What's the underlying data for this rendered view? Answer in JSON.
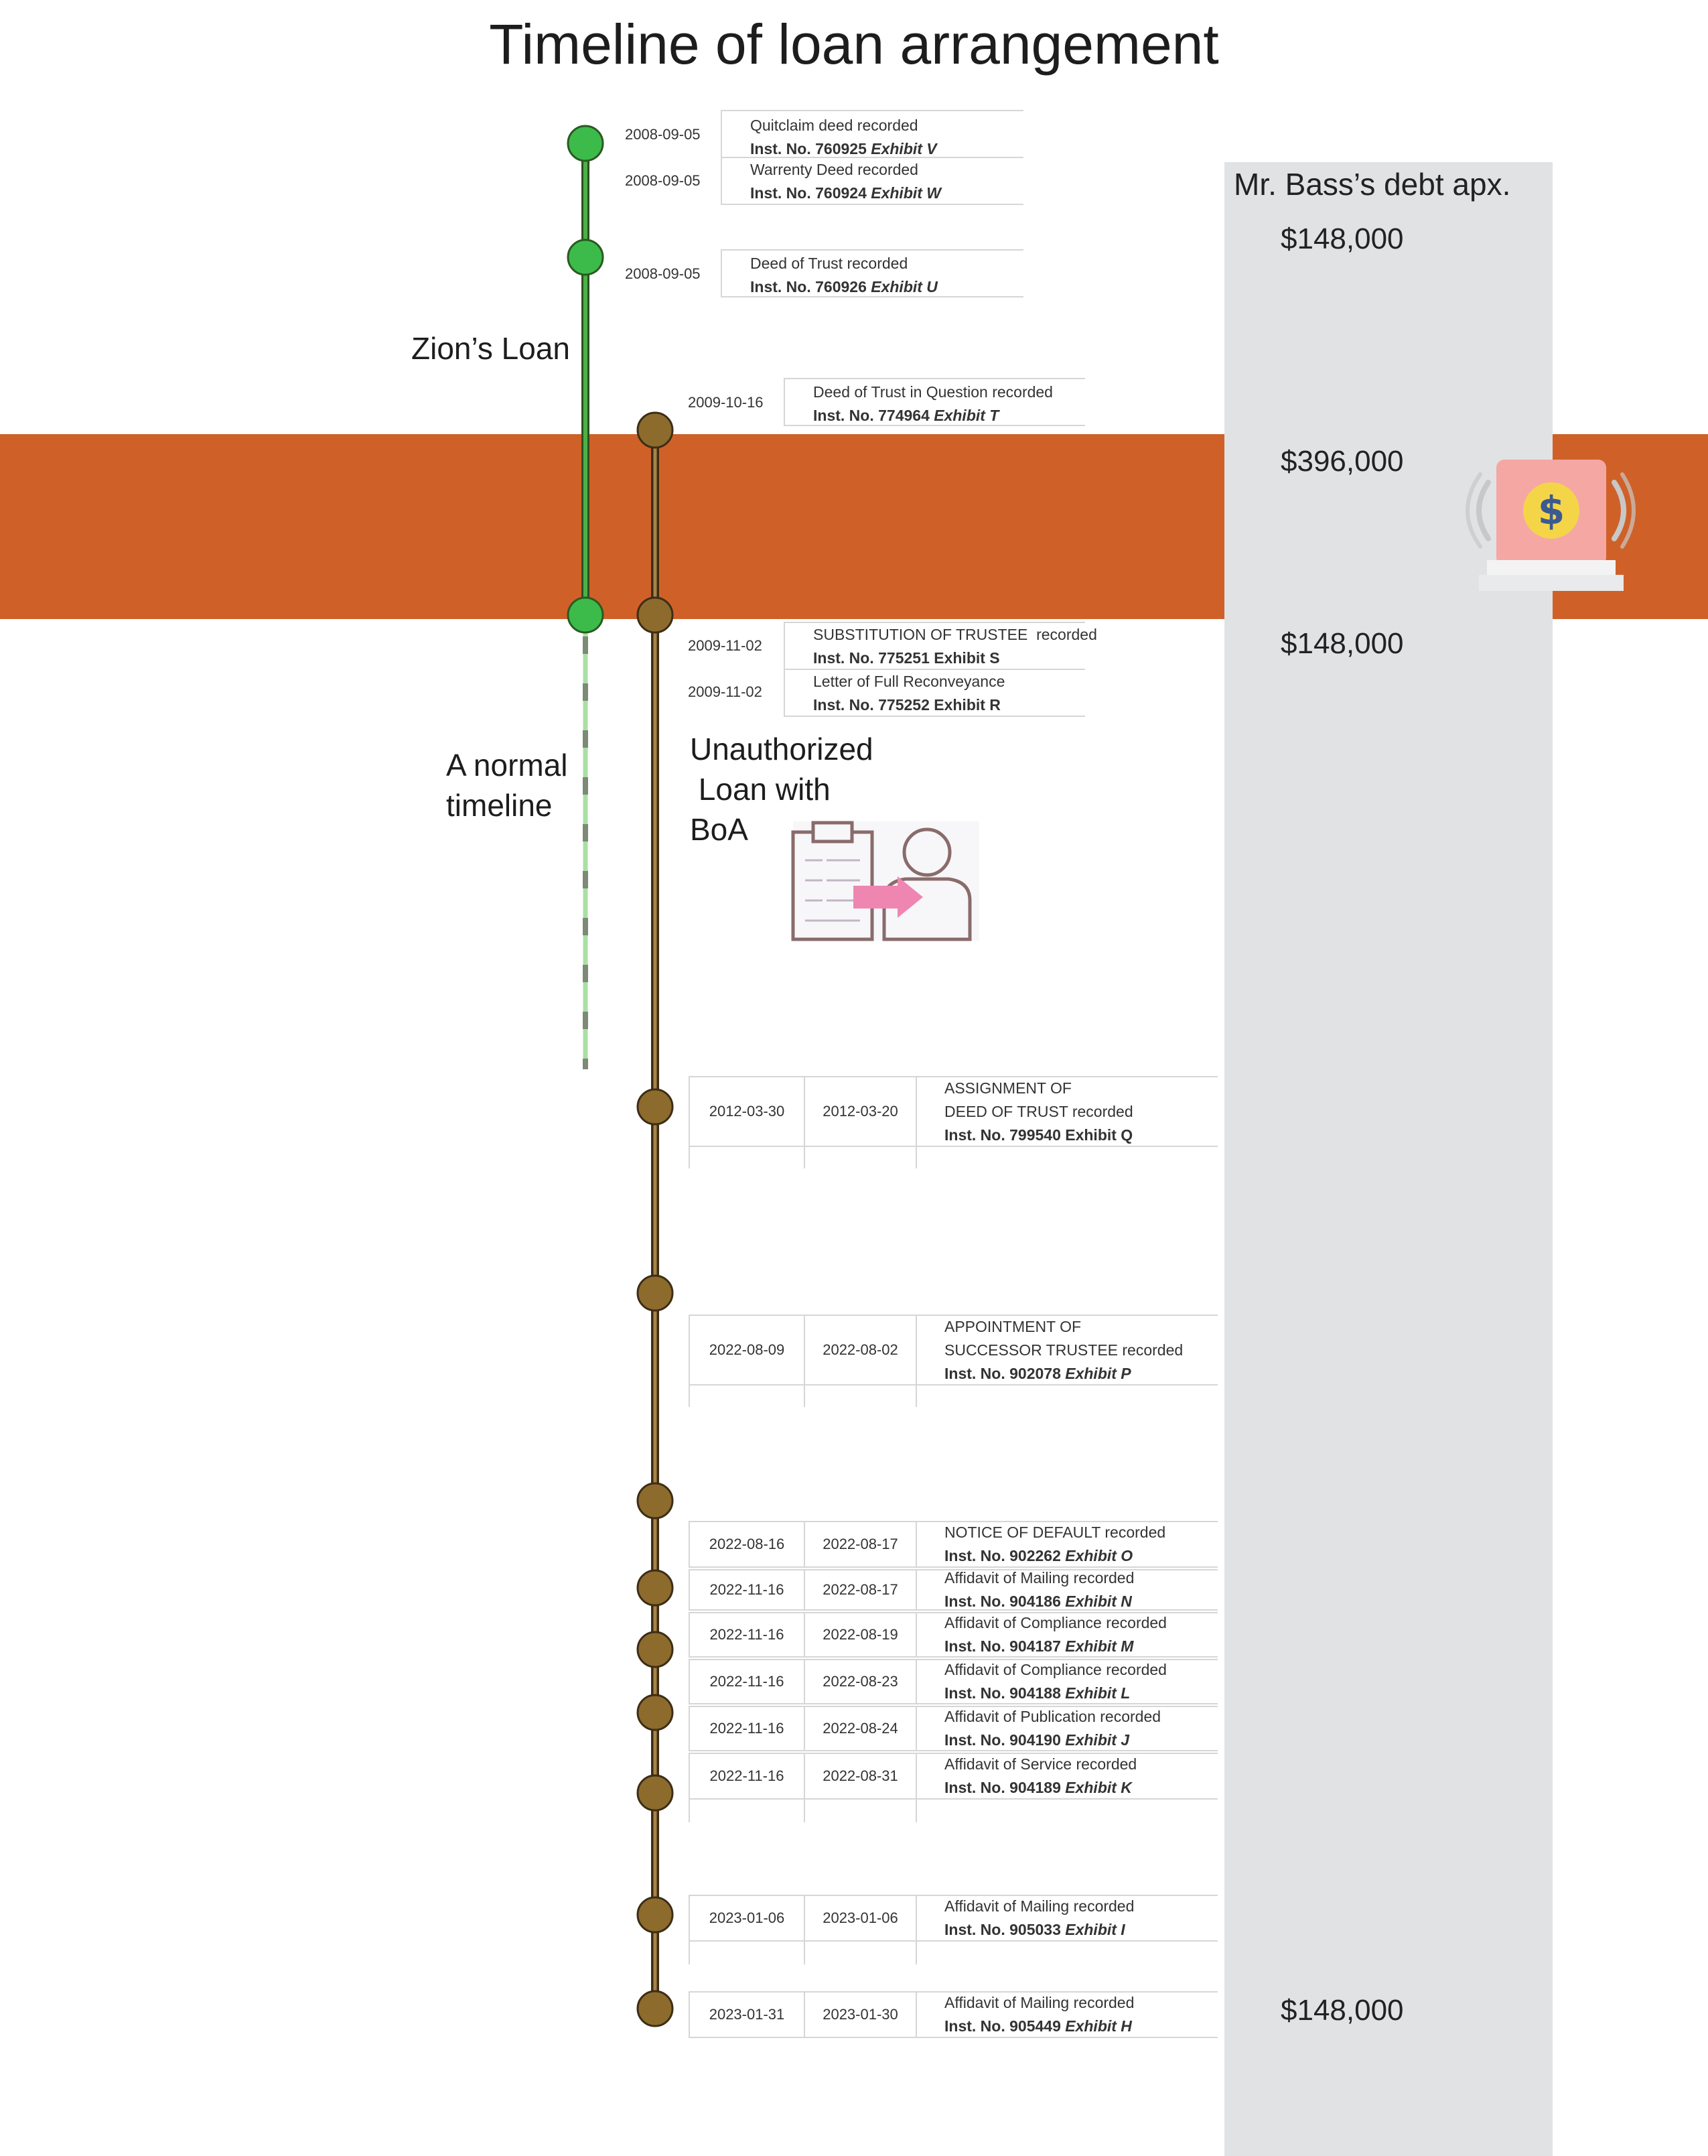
{
  "title": "Timeline of loan arrangement",
  "debt": {
    "heading": "Mr. Bass’s debt apx.",
    "values": [
      "$148,000",
      "$396,000",
      "$148,000",
      "$148,000"
    ]
  },
  "labels": {
    "zion": "Zion’s Loan",
    "normal_line1": "A normal",
    "normal_line2": "timeline",
    "boa_line1": "Unauthorized",
    "boa_line2": " Loan with",
    "boa_line3": "BoA"
  },
  "top_events": [
    {
      "date": "2008-09-05",
      "title": "Quitclaim deed recorded",
      "inst": "Inst. No. 760925",
      "exhibit": "Exhibit V"
    },
    {
      "date": "2008-09-05",
      "title": "Warrenty Deed recorded",
      "inst": "Inst. No. 760924",
      "exhibit": "Exhibit W"
    },
    {
      "date": "2008-09-05",
      "title": "Deed of Trust recorded",
      "inst": "Inst. No. 760926",
      "exhibit": "Exhibit U"
    },
    {
      "date": "2009-10-16",
      "title": "Deed of Trust in Question recorded",
      "inst": "Inst. No. 774964",
      "exhibit": "Exhibit T"
    },
    {
      "date": "2009-11-02",
      "title": "SUBSTITUTION OF TRUSTEE  recorded",
      "inst": "Inst. No. 775251 Exhibit S",
      "exhibit": ""
    },
    {
      "date": "2009-11-02",
      "title": "Letter of Full Reconveyance",
      "inst": "Inst. No. 775252 Exhibit R",
      "exhibit": ""
    }
  ],
  "grid_events": [
    {
      "d1": "2012-03-30",
      "d2": "2012-03-20",
      "line1": "ASSIGNMENT OF",
      "line2": "DEED OF TRUST recorded",
      "inst": "Inst. No. 799540 Exhibit Q",
      "exhibit": ""
    },
    {
      "d1": "2022-08-09",
      "d2": "2022-08-02",
      "line1": "APPOINTMENT OF",
      "line2": "SUCCESSOR TRUSTEE recorded",
      "inst": "Inst. No. 902078",
      "exhibit": "Exhibit P"
    },
    {
      "d1": "2022-08-16",
      "d2": "2022-08-17",
      "line1": "NOTICE OF DEFAULT recorded",
      "line2": "",
      "inst": "Inst. No. 902262",
      "exhibit": "Exhibit O"
    },
    {
      "d1": "2022-11-16",
      "d2": "2022-08-17",
      "line1": "Affidavit of Mailing recorded",
      "line2": "",
      "inst": "Inst. No. 904186",
      "exhibit": "Exhibit N"
    },
    {
      "d1": "2022-11-16",
      "d2": "2022-08-19",
      "line1": "Affidavit of Compliance recorded",
      "line2": "",
      "inst": "Inst. No. 904187",
      "exhibit": "Exhibit M"
    },
    {
      "d1": "2022-11-16",
      "d2": "2022-08-23",
      "line1": "Affidavit of Compliance recorded",
      "line2": "",
      "inst": "Inst. No. 904188",
      "exhibit": "Exhibit L"
    },
    {
      "d1": "2022-11-16",
      "d2": "2022-08-24",
      "line1": "Affidavit of Publication recorded",
      "line2": "",
      "inst": "Inst. No. 904190",
      "exhibit": "Exhibit J"
    },
    {
      "d1": "2022-11-16",
      "d2": "2022-08-31",
      "line1": "Affidavit of Service recorded",
      "line2": "",
      "inst": "Inst. No. 904189",
      "exhibit": "Exhibit K"
    },
    {
      "d1": "2023-01-06",
      "d2": "2023-01-06",
      "line1": "Affidavit of Mailing recorded",
      "line2": "",
      "inst": "Inst. No. 905033",
      "exhibit": "Exhibit I"
    },
    {
      "d1": "2023-01-31",
      "d2": "2023-01-30",
      "line1": "Affidavit of Mailing recorded",
      "line2": "",
      "inst": "Inst. No. 905449",
      "exhibit": "Exhibit H"
    }
  ],
  "colors": {
    "band": "#cf6128",
    "debt_column": "#e1e2e4",
    "zion_line": "#3c8b35",
    "zion_node": "#3dbb4a",
    "normal_line": "#a9dfa4",
    "boa_line": "#5a4526",
    "boa_node": "#8d6b2c"
  },
  "icons": [
    "money-bag-icon",
    "transfer-document-icon"
  ]
}
